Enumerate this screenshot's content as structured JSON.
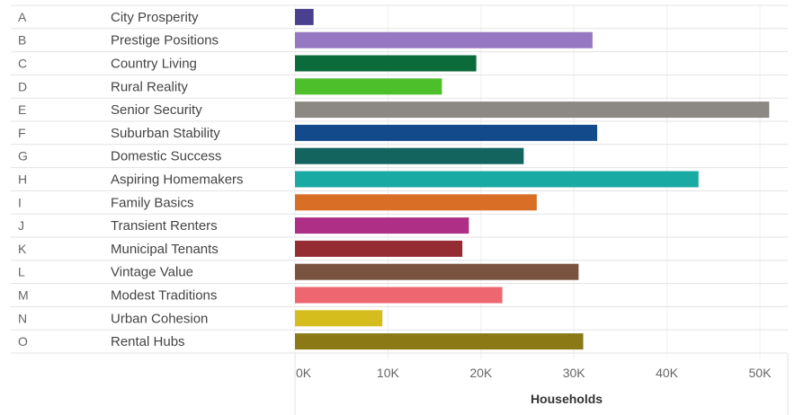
{
  "chart_data": {
    "type": "bar",
    "orientation": "horizontal",
    "codes": [
      "A",
      "B",
      "C",
      "D",
      "E",
      "F",
      "G",
      "H",
      "I",
      "J",
      "K",
      "L",
      "M",
      "N",
      "O"
    ],
    "categories": [
      "City Prosperity",
      "Prestige Positions",
      "Country Living",
      "Rural Reality",
      "Senior Security",
      "Suburban Stability",
      "Domestic Success",
      "Aspiring Homemakers",
      "Family Basics",
      "Transient Renters",
      "Municipal Tenants",
      "Vintage Value",
      "Modest Traditions",
      "Urban Cohesion",
      "Rental Hubs"
    ],
    "values": [
      2000,
      32000,
      19500,
      15800,
      51000,
      32500,
      24600,
      43400,
      26000,
      18700,
      18000,
      30500,
      22300,
      9400,
      31000
    ],
    "colors": [
      "#4b3f8f",
      "#9577c2",
      "#0b6b3a",
      "#4dbf2a",
      "#8c8883",
      "#124a8c",
      "#13635f",
      "#19aaa3",
      "#d96f27",
      "#ad2f86",
      "#952b33",
      "#7a5340",
      "#ee6670",
      "#d6bd1e",
      "#8a7915"
    ],
    "xlabel": "Households",
    "xlim": [
      0,
      53000
    ],
    "ticks": [
      0,
      10000,
      20000,
      30000,
      40000,
      50000
    ],
    "tick_labels": [
      "0K",
      "10K",
      "20K",
      "30K",
      "40K",
      "50K"
    ],
    "grid": true
  }
}
